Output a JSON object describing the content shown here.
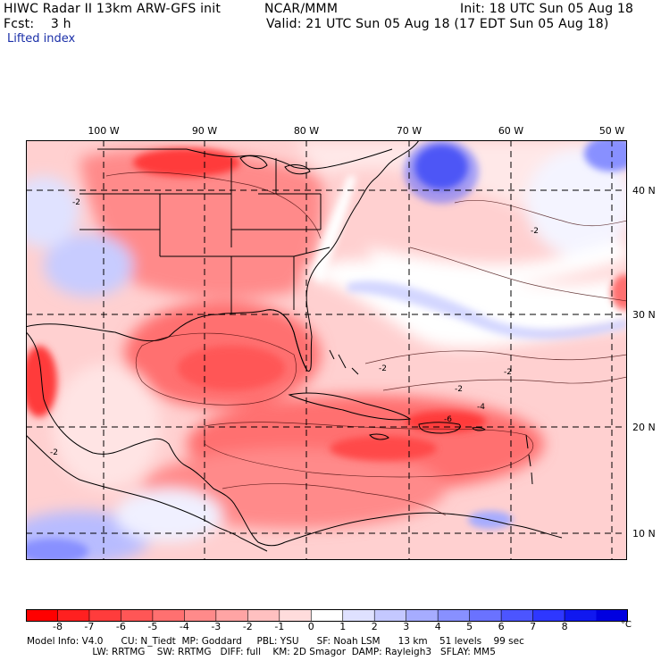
{
  "header": {
    "left_line1": "HIWC Radar II 13km ARW-GFS init",
    "center_line1": "NCAR/MMM",
    "right_line1": "Init: 18 UTC Sun 05 Aug 18",
    "left_line2": "Fcst:    3 h",
    "right_line2": "Valid: 21 UTC Sun 05 Aug 18 (17 EDT Sun 05 Aug 18)",
    "field_name": "Lifted index"
  },
  "axes": {
    "lon_labels": [
      "100 W",
      "90 W",
      "80 W",
      "70 W",
      "60 W",
      "50 W"
    ],
    "lat_labels": [
      "40 N",
      "30 N",
      "20 N",
      "10 N"
    ]
  },
  "colorbar": {
    "ticks": [
      "-8",
      "-7",
      "-6",
      "-5",
      "-4",
      "-3",
      "-2",
      "-1",
      "0",
      "1",
      "2",
      "3",
      "4",
      "5",
      "6",
      "7",
      "8"
    ],
    "unit": "°C",
    "colors": [
      "#ff0000",
      "#ff2020",
      "#ff3c3c",
      "#ff5656",
      "#ff7070",
      "#ff8a8a",
      "#ffa4a4",
      "#ffc0c0",
      "#ffdcdc",
      "#ffffff",
      "#dfe1ff",
      "#c4c8ff",
      "#a6acff",
      "#8890ff",
      "#6a72ff",
      "#4c55ff",
      "#2e37ff",
      "#1018f0",
      "#0000e0"
    ]
  },
  "footer": {
    "line1": "Model Info: V4.0      CU: N_Tiedt  MP: Goddard     PBL: YSU      SF: Noah LSM      13 km    51 levels    99 sec",
    "line2": "                      LW: RRTMG    SW: RRTMG   DIFF: full    KM: 2D Smagor  DAMP: Rayleigh3   SFLAY: MM5"
  },
  "map_colors": {
    "ocean_base": "#ffd0d0",
    "strong_red": "#ff3a3a",
    "mid_red": "#ff7070",
    "light_pink": "#ffe4e4",
    "white": "#ffffff",
    "light_blue": "#c8ccff",
    "blue": "#6a72ff",
    "deep_blue": "#2230e8"
  }
}
